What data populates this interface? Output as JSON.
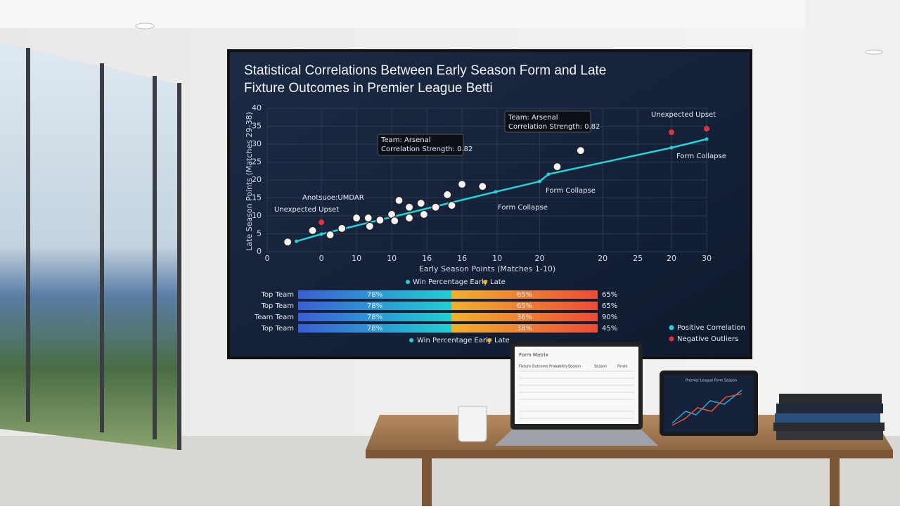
{
  "chart_data": {
    "type": "scatter",
    "title": [
      "Statistical Correlations Between Early Season Form and Late",
      "Fixture Outcomes in Premier League Betti"
    ],
    "xlabel": "Early Season Points (Matches 1-10)",
    "ylabel": "Late Season Points (Matches 29-38)",
    "xlim": [
      0,
      30
    ],
    "ylim": [
      0,
      40
    ],
    "yticks": [
      0,
      5,
      10,
      15,
      20,
      25,
      30,
      35,
      40
    ],
    "xticks": [
      {
        "value": 0,
        "label": "0"
      },
      {
        "value": 3.7,
        "label": "0"
      },
      {
        "value": 6.1,
        "label": "10"
      },
      {
        "value": 8.5,
        "label": "10"
      },
      {
        "value": 10.9,
        "label": "16"
      },
      {
        "value": 13.3,
        "label": "16"
      },
      {
        "value": 15.7,
        "label": "10"
      },
      {
        "value": 18.6,
        "label": "20"
      },
      {
        "value": 22.9,
        "label": "20"
      },
      {
        "value": 25.3,
        "label": "25"
      },
      {
        "value": 27.6,
        "label": "20"
      },
      {
        "value": 30,
        "label": "30"
      }
    ],
    "grid": true,
    "series": [
      {
        "name": "Positive Correlation",
        "color": "#22d3d8",
        "line": true,
        "x": [
          2.0,
          3.7,
          15.6,
          18.6,
          19.2,
          27.6,
          30
        ],
        "values": [
          2.9,
          4.9,
          16.7,
          19.6,
          21.6,
          29.0,
          31.4
        ]
      },
      {
        "color": "#f4f4f4",
        "x": [
          1.4,
          3.1,
          4.3,
          5.1,
          6.1,
          6.9,
          7.0,
          7.7,
          8.5,
          8.7,
          9.0,
          9.7,
          9.7,
          10.5,
          10.7,
          11.5,
          12.3,
          12.6,
          13.3,
          14.7,
          19.8,
          21.4
        ],
        "values": [
          2.7,
          5.9,
          4.7,
          6.5,
          9.4,
          9.4,
          7.1,
          8.8,
          10.4,
          8.6,
          14.3,
          12.4,
          9.4,
          13.5,
          10.4,
          12.4,
          15.9,
          12.9,
          18.8,
          18.2,
          23.7,
          28.2
        ]
      },
      {
        "name": "Negative Outliers",
        "color": "#e0343c",
        "x": [
          3.7,
          27.6,
          30
        ],
        "values": [
          8.2,
          33.3,
          34.3
        ]
      }
    ],
    "annotations": [
      "Team: Arsenal",
      "Correlation Strength: 0.82",
      "Team: Arsenal",
      "Correlation Strength: 0.82",
      "Unexpected Upset",
      "Anotsuoe:UMDAR",
      "Unexpected Upset",
      "Form Collapse",
      "Form Collapse",
      "Form Collapse"
    ]
  },
  "bars": {
    "legend": [
      "Win Percentage Early",
      "Late"
    ],
    "rows": [
      {
        "label": "Top Team",
        "early": "78%",
        "late": "65%",
        "total": "65%"
      },
      {
        "label": "Top Team",
        "early": "78%",
        "late": "65%",
        "total": "65%"
      },
      {
        "label": "Team Team",
        "early": "78%",
        "late": "36%",
        "total": "90%"
      },
      {
        "label": "Top Team",
        "early": "78%",
        "late": "38%",
        "total": "45%"
      }
    ],
    "footer_legend": [
      "Win Percentage Early",
      "Late"
    ]
  },
  "laptop": {
    "title": "Form Matrix",
    "header": [
      "Fixture Outcome Probability",
      "Season",
      "Season",
      "Finale"
    ]
  },
  "tablet": {
    "title": "Premier League Form Season"
  }
}
